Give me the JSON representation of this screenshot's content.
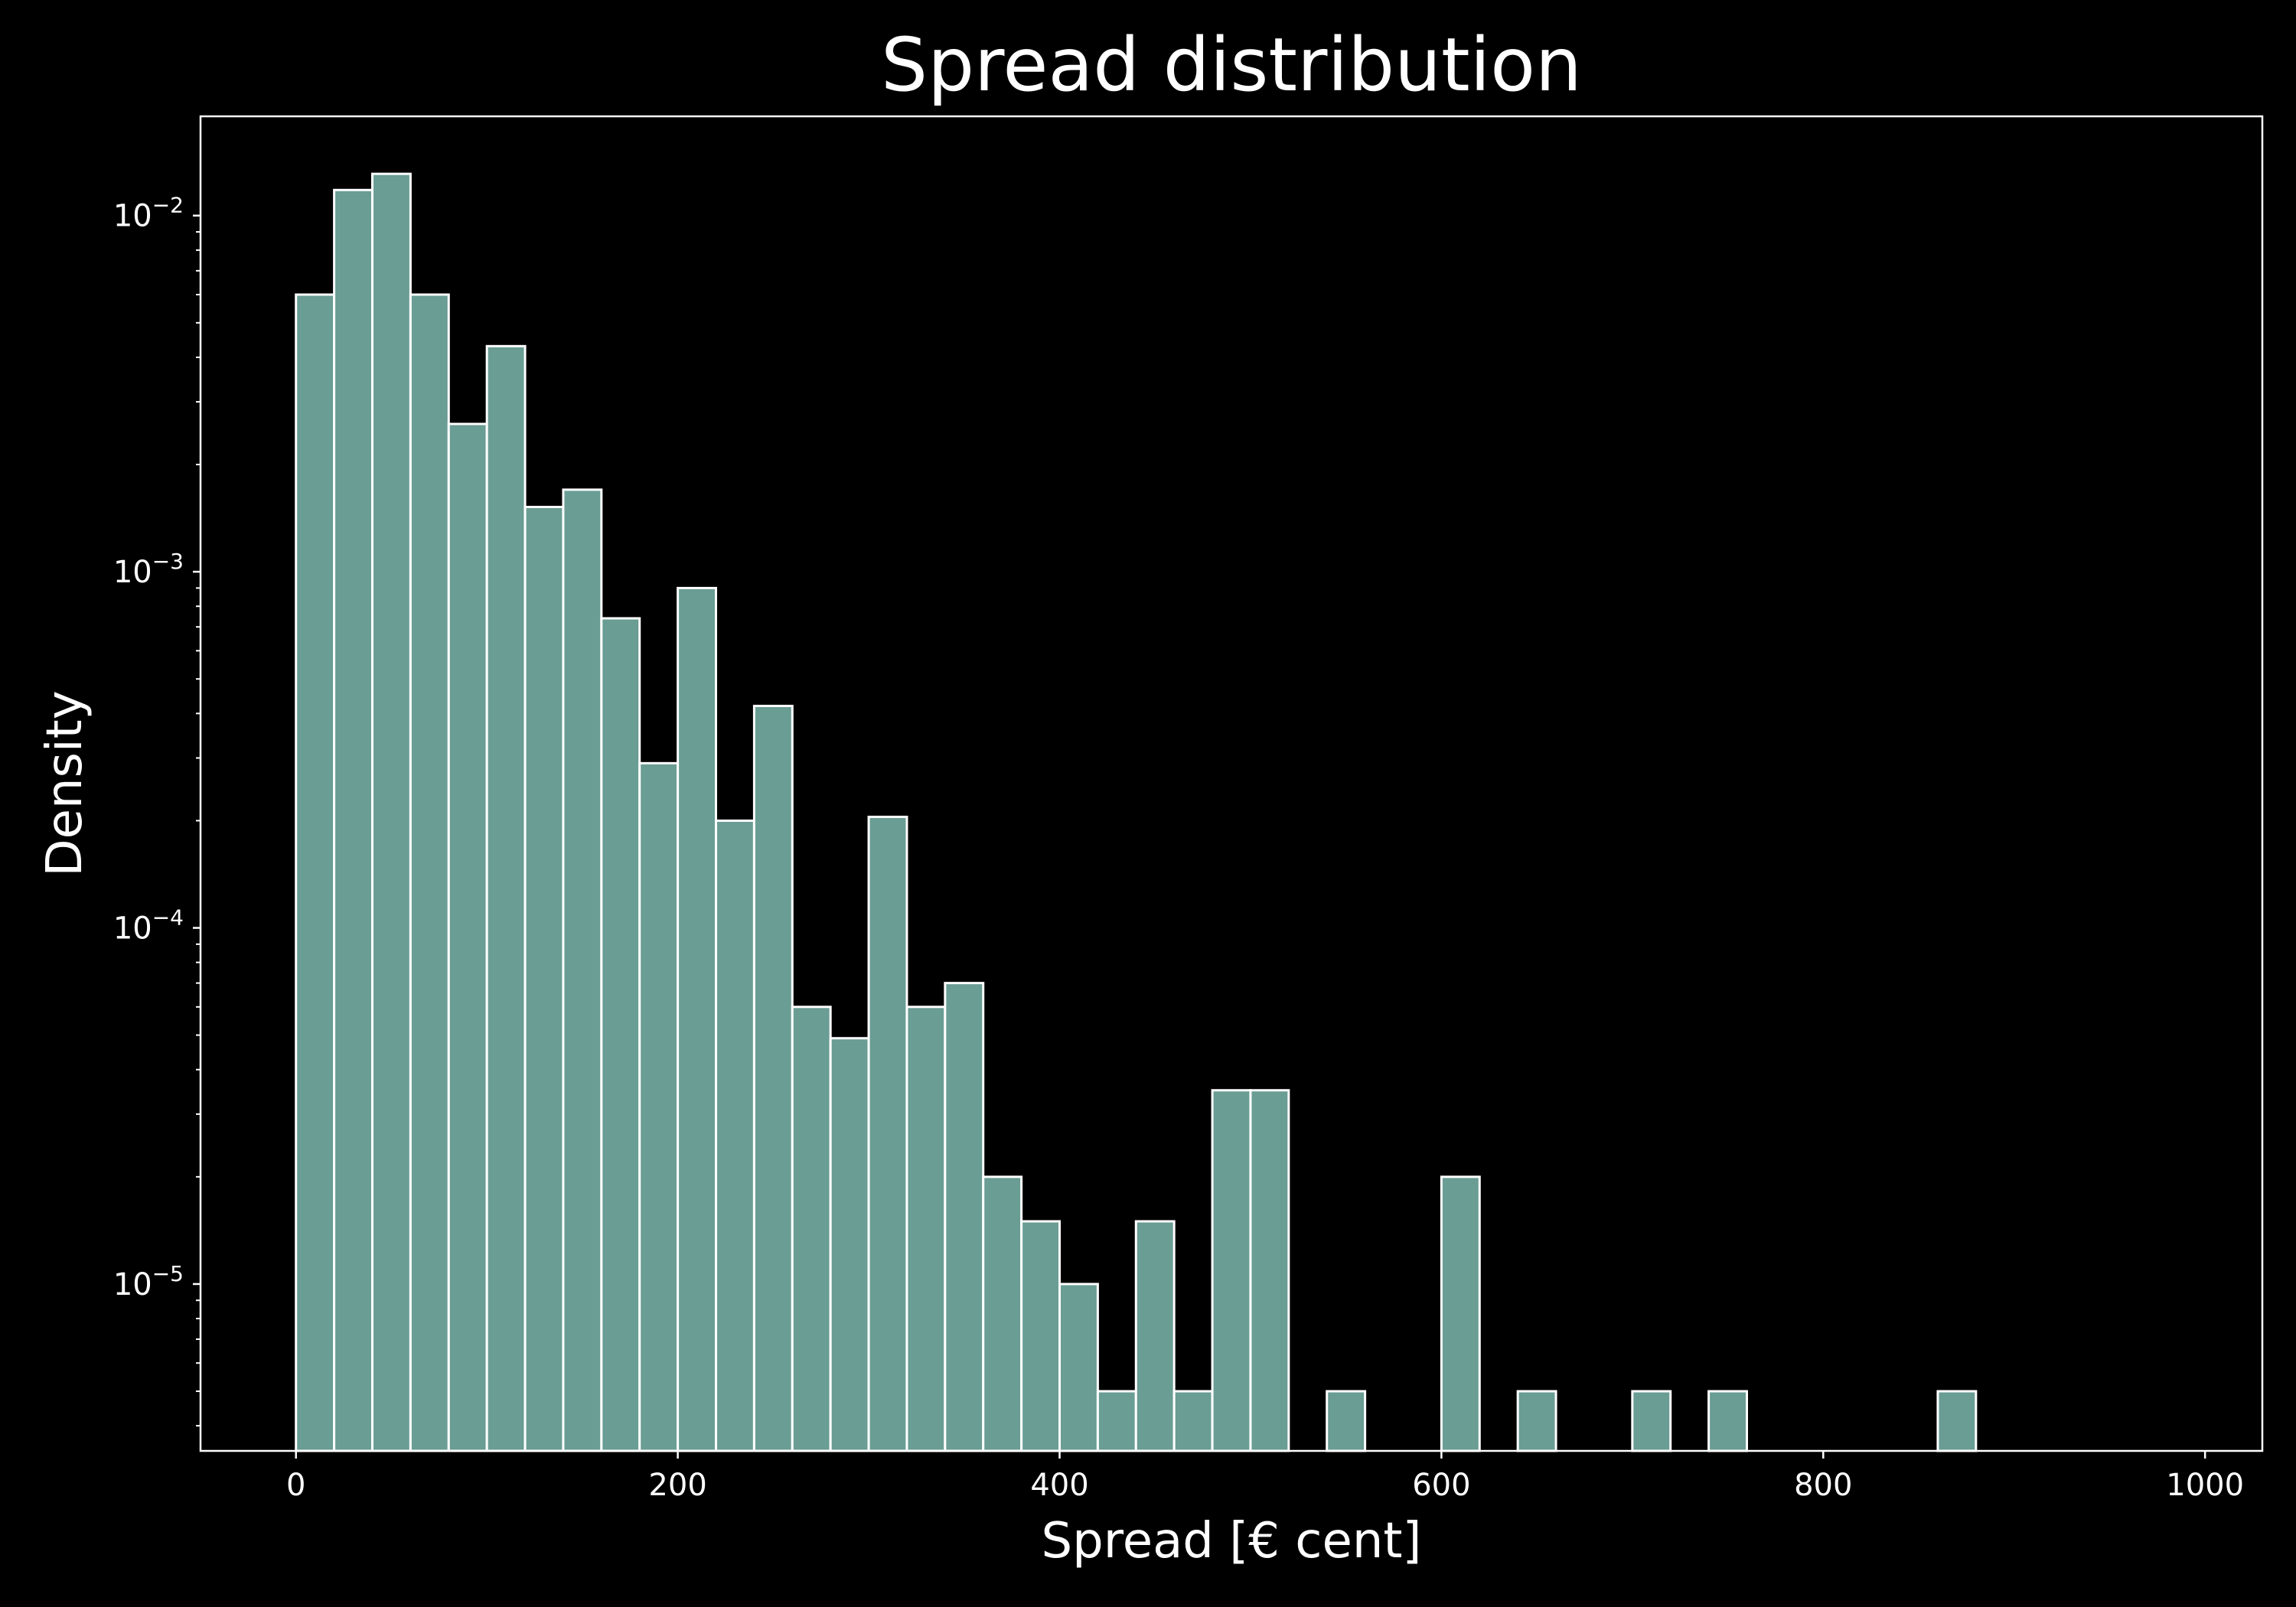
{
  "colors": {
    "background": "#000000",
    "bar_fill": "#6a9d94",
    "bar_edge": "#ffffff",
    "axis": "#ffffff",
    "text": "#ffffff"
  },
  "chart_data": {
    "type": "bar",
    "subtype": "histogram",
    "title": "Spread distribution",
    "xlabel": "Spread [€ cent]",
    "ylabel": "Density",
    "xlim": [
      -50,
      1030
    ],
    "ylim": [
      3.4e-06,
      0.019
    ],
    "yscale": "log",
    "grid": false,
    "legend": "none",
    "bin_width": 20,
    "xticks": [
      0,
      200,
      400,
      600,
      800,
      1000
    ],
    "xtick_labels": [
      "0",
      "200",
      "400",
      "600",
      "800",
      "1000"
    ],
    "yticks": [
      1e-05,
      0.0001,
      0.001,
      0.01
    ],
    "ytick_labels": [
      {
        "base": "10",
        "exp": "−5"
      },
      {
        "base": "10",
        "exp": "−4"
      },
      {
        "base": "10",
        "exp": "−3"
      },
      {
        "base": "10",
        "exp": "−2"
      }
    ],
    "bins": [
      {
        "x0": 0,
        "x1": 20,
        "value": 0.006
      },
      {
        "x0": 20,
        "x1": 40,
        "value": 0.0118
      },
      {
        "x0": 40,
        "x1": 60,
        "value": 0.0131
      },
      {
        "x0": 60,
        "x1": 80,
        "value": 0.006
      },
      {
        "x0": 80,
        "x1": 100,
        "value": 0.0026
      },
      {
        "x0": 100,
        "x1": 120,
        "value": 0.0043
      },
      {
        "x0": 120,
        "x1": 140,
        "value": 0.00152
      },
      {
        "x0": 140,
        "x1": 160,
        "value": 0.0017
      },
      {
        "x0": 160,
        "x1": 180,
        "value": 0.00074
      },
      {
        "x0": 180,
        "x1": 200,
        "value": 0.00029
      },
      {
        "x0": 200,
        "x1": 220,
        "value": 0.0009
      },
      {
        "x0": 220,
        "x1": 240,
        "value": 0.0002
      },
      {
        "x0": 240,
        "x1": 260,
        "value": 0.00042
      },
      {
        "x0": 260,
        "x1": 280,
        "value": 6e-05
      },
      {
        "x0": 280,
        "x1": 300,
        "value": 4.9e-05
      },
      {
        "x0": 300,
        "x1": 320,
        "value": 0.000205
      },
      {
        "x0": 320,
        "x1": 340,
        "value": 6e-05
      },
      {
        "x0": 340,
        "x1": 360,
        "value": 7e-05
      },
      {
        "x0": 360,
        "x1": 380,
        "value": 2e-05
      },
      {
        "x0": 380,
        "x1": 400,
        "value": 1.5e-05
      },
      {
        "x0": 400,
        "x1": 420,
        "value": 1e-05
      },
      {
        "x0": 420,
        "x1": 440,
        "value": 5e-06
      },
      {
        "x0": 440,
        "x1": 460,
        "value": 1.5e-05
      },
      {
        "x0": 460,
        "x1": 480,
        "value": 5e-06
      },
      {
        "x0": 480,
        "x1": 500,
        "value": 3.5e-05
      },
      {
        "x0": 500,
        "x1": 520,
        "value": 3.5e-05
      },
      {
        "x0": 540,
        "x1": 560,
        "value": 5e-06
      },
      {
        "x0": 600,
        "x1": 620,
        "value": 2e-05
      },
      {
        "x0": 640,
        "x1": 660,
        "value": 5e-06
      },
      {
        "x0": 700,
        "x1": 720,
        "value": 5e-06
      },
      {
        "x0": 740,
        "x1": 760,
        "value": 5e-06
      },
      {
        "x0": 860,
        "x1": 880,
        "value": 5e-06
      }
    ]
  }
}
